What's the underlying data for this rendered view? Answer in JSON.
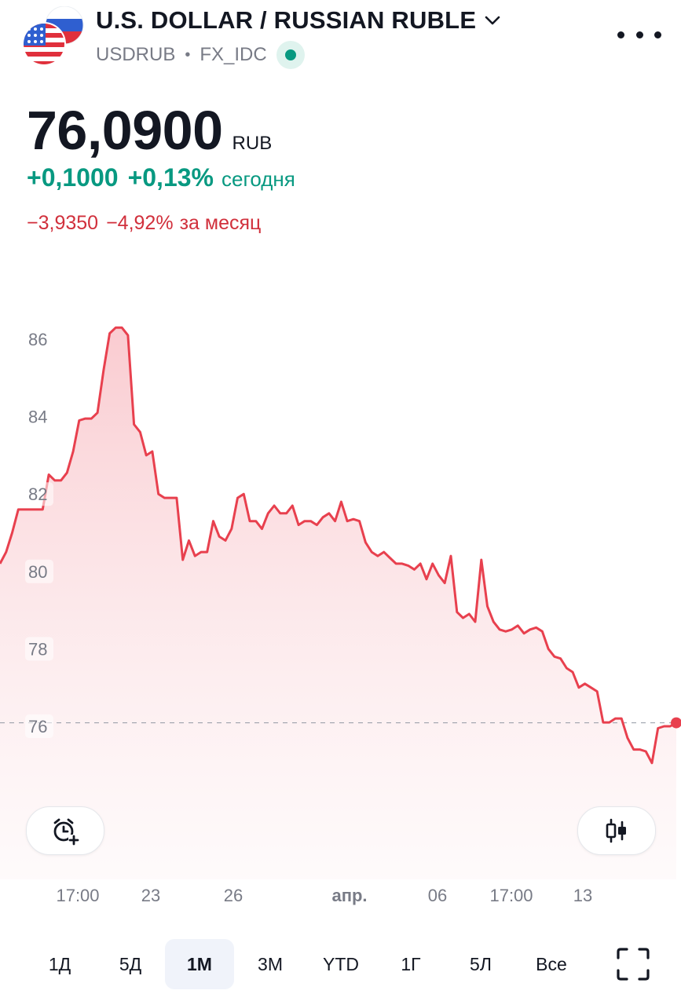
{
  "header": {
    "title": "U.S. DOLLAR / RUSSIAN RUBLE",
    "symbol": "USDRUB",
    "separator": "•",
    "exchange": "FX_IDC",
    "icons": [
      "usd-flag",
      "rub-flag",
      "chevron-down-icon",
      "live-dot",
      "more-icon"
    ]
  },
  "quote": {
    "price": "76,0900",
    "currency": "RUB",
    "today_change": "+0,1000",
    "today_change_pct": "+0,13%",
    "today_label": "сегодня",
    "month_change": "−3,9350",
    "month_change_pct": "−4,92%",
    "month_label": "за месяц"
  },
  "colors": {
    "up": "#089981",
    "down": "#d1303c",
    "line": "#e8404e"
  },
  "chart_data": {
    "type": "area",
    "y_ticks": [
      "86",
      "84",
      "82",
      "80",
      "78",
      "76"
    ],
    "ylim": [
      75,
      86.2
    ],
    "last_price_line": 76.09,
    "x_ticks": [
      "17:00",
      "23",
      "26",
      "апр.",
      "06",
      "17:00",
      "13"
    ],
    "values": [
      80.2,
      80.5,
      81.0,
      81.6,
      81.6,
      81.6,
      81.6,
      81.6,
      82.5,
      82.35,
      82.35,
      82.55,
      83.1,
      83.9,
      83.95,
      83.95,
      84.1,
      85.2,
      86.15,
      86.3,
      86.3,
      86.1,
      83.8,
      83.6,
      83.0,
      83.1,
      82.0,
      81.9,
      81.9,
      81.9,
      80.3,
      80.8,
      80.4,
      80.5,
      80.5,
      81.3,
      80.9,
      80.8,
      81.1,
      81.9,
      82.0,
      81.3,
      81.3,
      81.1,
      81.5,
      81.7,
      81.5,
      81.5,
      81.7,
      81.2,
      81.3,
      81.3,
      81.2,
      81.4,
      81.5,
      81.3,
      81.8,
      81.3,
      81.35,
      81.3,
      80.75,
      80.5,
      80.4,
      80.5,
      80.35,
      80.2,
      80.2,
      80.15,
      80.05,
      80.2,
      79.8,
      80.2,
      79.9,
      79.7,
      80.4,
      78.95,
      78.8,
      78.9,
      78.7,
      80.3,
      79.1,
      78.7,
      78.5,
      78.45,
      78.5,
      78.6,
      78.4,
      78.5,
      78.55,
      78.45,
      78.0,
      77.8,
      77.75,
      77.5,
      77.4,
      77.0,
      77.1,
      77.0,
      76.9,
      76.1,
      76.1,
      76.2,
      76.2,
      75.7,
      75.4,
      75.4,
      75.35,
      75.05,
      75.95,
      76.0,
      76.0,
      76.09
    ]
  },
  "controls": {
    "alert_button": "alarm-plus-icon",
    "chart_type_button": "candlestick-icon",
    "fullscreen_button": "fullscreen-icon"
  },
  "ranges": {
    "items": [
      "1Д",
      "5Д",
      "1М",
      "3М",
      "YTD",
      "1Г",
      "5Л",
      "Все"
    ],
    "active": "1М"
  }
}
